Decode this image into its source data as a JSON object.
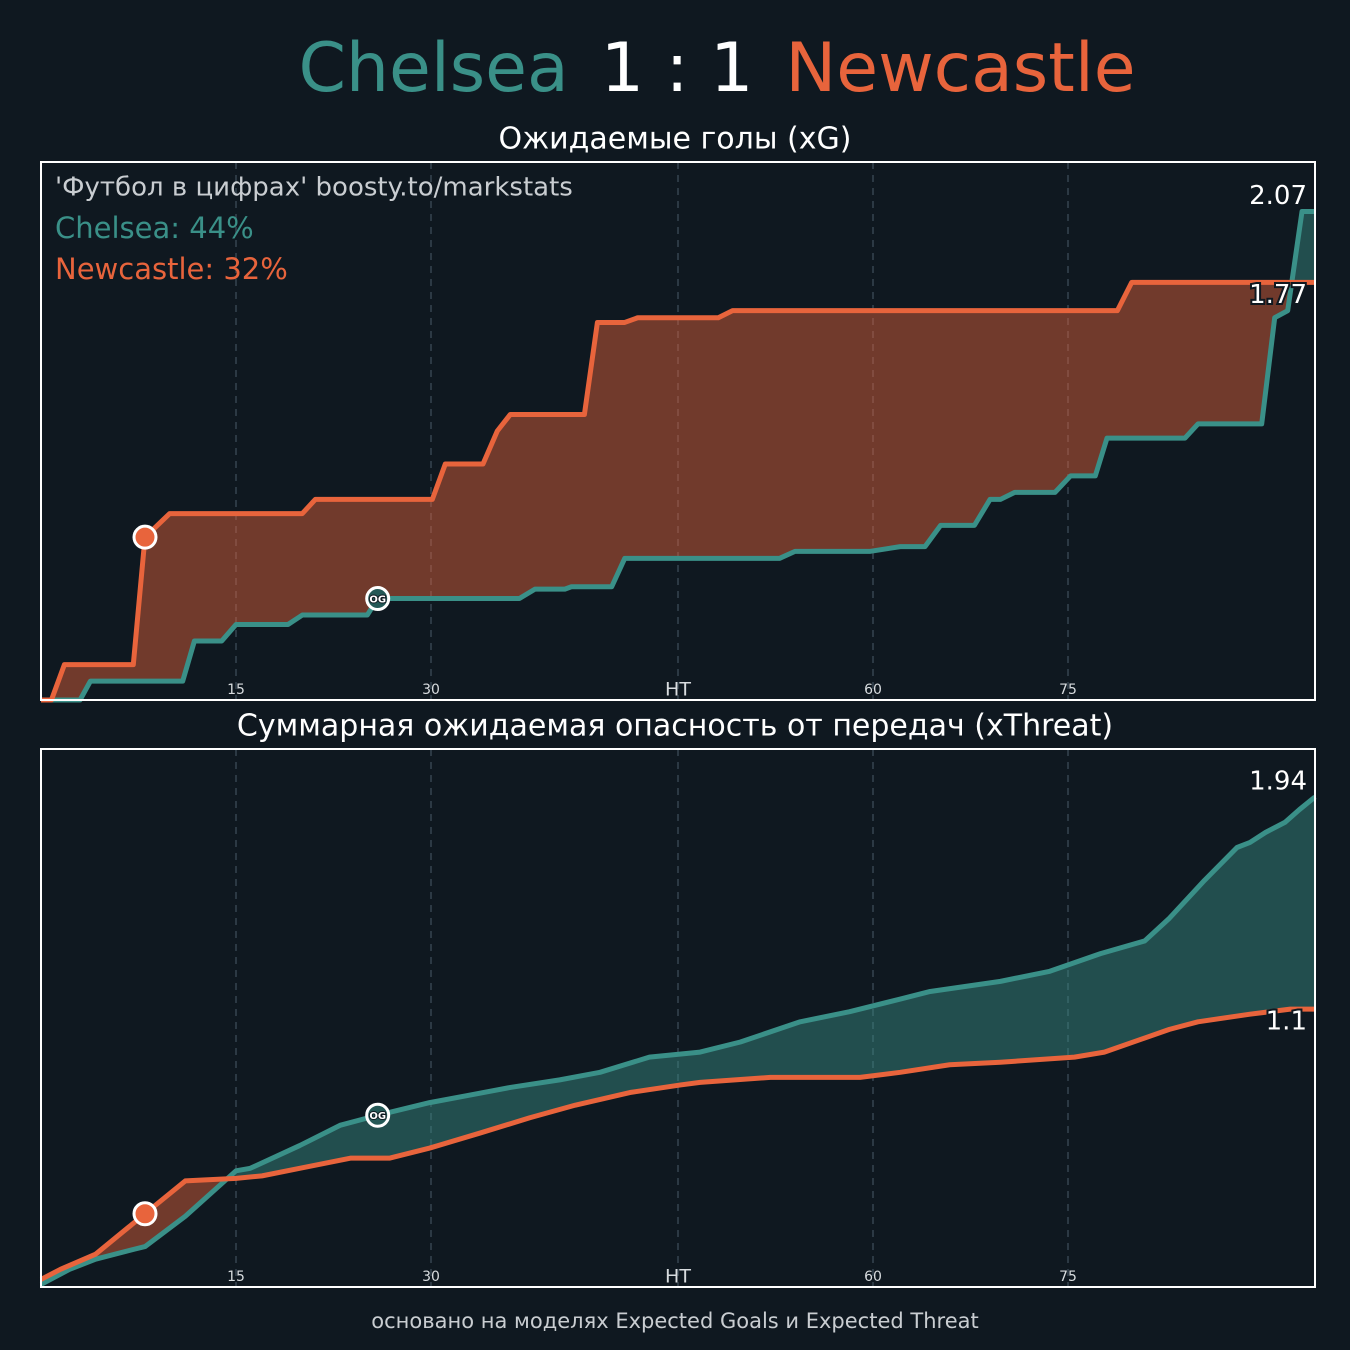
{
  "header": {
    "home": "Chelsea",
    "score": "1 : 1",
    "away": "Newcastle"
  },
  "footer": "основано на моделях Expected Goals и Expected Threat",
  "chart_data": [
    {
      "type": "line",
      "title": "Ожидаемые голы (xG)",
      "annotation": "'Футбол в цифрах' boosty.to/markstats",
      "legend": [
        "Chelsea: 44%",
        "Newcastle: 32%"
      ],
      "xlim": [
        0,
        98
      ],
      "ylim": [
        0,
        2.28
      ],
      "xticks": [
        15,
        30,
        {
          "value": 49,
          "label": "HT"
        },
        {
          "value": 64,
          "label": "60"
        },
        {
          "value": 79,
          "label": "75"
        }
      ],
      "grid": true,
      "series": [
        {
          "color": "#3a9088",
          "x": [
            0,
            3.0,
            3.8,
            10.9,
            11.8,
            13.9,
            15.0,
            19.0,
            20.1,
            25.1,
            25.9,
            36.8,
            38.0,
            40.3,
            40.8,
            43.9,
            44.9,
            56.8,
            58.0,
            63.8,
            66.1,
            68.0,
            69.2,
            71.8,
            73.0,
            73.8,
            74.9,
            78.0,
            79.2,
            81.1,
            82.0,
            88.0,
            89.0,
            93.9,
            94.9,
            95.9,
            97.0,
            98.0
          ],
          "values": [
            0,
            0,
            0.08,
            0.08,
            0.25,
            0.25,
            0.32,
            0.32,
            0.36,
            0.36,
            0.43,
            0.43,
            0.47,
            0.47,
            0.48,
            0.48,
            0.6,
            0.6,
            0.63,
            0.63,
            0.65,
            0.65,
            0.74,
            0.74,
            0.85,
            0.85,
            0.88,
            0.88,
            0.95,
            0.95,
            1.11,
            1.11,
            1.17,
            1.17,
            1.62,
            1.65,
            2.07,
            2.07
          ],
          "goals": [
            {
              "x": 25.9,
              "label": "OG"
            }
          ]
        },
        {
          "color": "#e8643c",
          "x": [
            0,
            0.8,
            1.8,
            7.1,
            8.0,
            9.9,
            20.1,
            21.1,
            30.1,
            31.1,
            34.0,
            35.1,
            36.1,
            41.8,
            42.8,
            44.9,
            45.9,
            52.1,
            53.2,
            82.8,
            83.9,
            98.0
          ],
          "values": [
            0,
            0,
            0.15,
            0.15,
            0.69,
            0.79,
            0.79,
            0.85,
            0.85,
            1.0,
            1.0,
            1.14,
            1.21,
            1.21,
            1.6,
            1.6,
            1.62,
            1.62,
            1.65,
            1.65,
            1.77,
            1.77
          ],
          "goals": [
            {
              "x": 8.0
            }
          ]
        }
      ]
    },
    {
      "type": "line",
      "title": "Суммарная ожидаемая опасность от передач (xThreat)",
      "xlim": [
        0,
        98
      ],
      "ylim": [
        0,
        2.13
      ],
      "xticks": [
        15,
        30,
        {
          "value": 49,
          "label": "HT"
        },
        {
          "value": 64,
          "label": "60"
        },
        {
          "value": 79,
          "label": "75"
        }
      ],
      "grid": true,
      "series": [
        {
          "color": "#3a9088",
          "x": [
            0,
            2.2,
            4.2,
            7.2,
            8.0,
            11.1,
            15.0,
            16.1,
            19.9,
            23.0,
            25.9,
            29.9,
            33.0,
            36.1,
            39.9,
            43.0,
            46.8,
            50.7,
            53.8,
            58.4,
            62.2,
            66.1,
            68.4,
            73.8,
            77.6,
            81.5,
            84.9,
            86.8,
            89.5,
            92.0,
            93.0,
            94.2,
            95.7,
            96.8,
            98.0
          ],
          "values": [
            0.01,
            0.07,
            0.11,
            0.15,
            0.16,
            0.28,
            0.46,
            0.47,
            0.56,
            0.64,
            0.68,
            0.73,
            0.76,
            0.79,
            0.82,
            0.85,
            0.91,
            0.93,
            0.97,
            1.05,
            1.09,
            1.14,
            1.17,
            1.21,
            1.25,
            1.32,
            1.37,
            1.46,
            1.61,
            1.74,
            1.76,
            1.8,
            1.84,
            1.89,
            1.94
          ],
          "goals": [
            {
              "x": 25.9,
              "label": "OG"
            }
          ]
        },
        {
          "color": "#e8643c",
          "x": [
            0,
            1.5,
            4.2,
            8.0,
            11.1,
            15.0,
            17.0,
            19.9,
            23.8,
            26.8,
            29.9,
            33.8,
            37.6,
            41.1,
            45.3,
            49.2,
            50.7,
            56.1,
            63.0,
            66.1,
            69.9,
            73.8,
            79.5,
            81.8,
            86.8,
            89.0,
            93.0,
            96.1,
            98.0
          ],
          "values": [
            0.03,
            0.07,
            0.13,
            0.29,
            0.42,
            0.43,
            0.44,
            0.47,
            0.51,
            0.51,
            0.55,
            0.61,
            0.67,
            0.72,
            0.77,
            0.8,
            0.81,
            0.83,
            0.83,
            0.85,
            0.88,
            0.89,
            0.91,
            0.93,
            1.02,
            1.05,
            1.08,
            1.1,
            1.1
          ],
          "goals": [
            {
              "x": 8.0
            }
          ]
        }
      ]
    }
  ]
}
